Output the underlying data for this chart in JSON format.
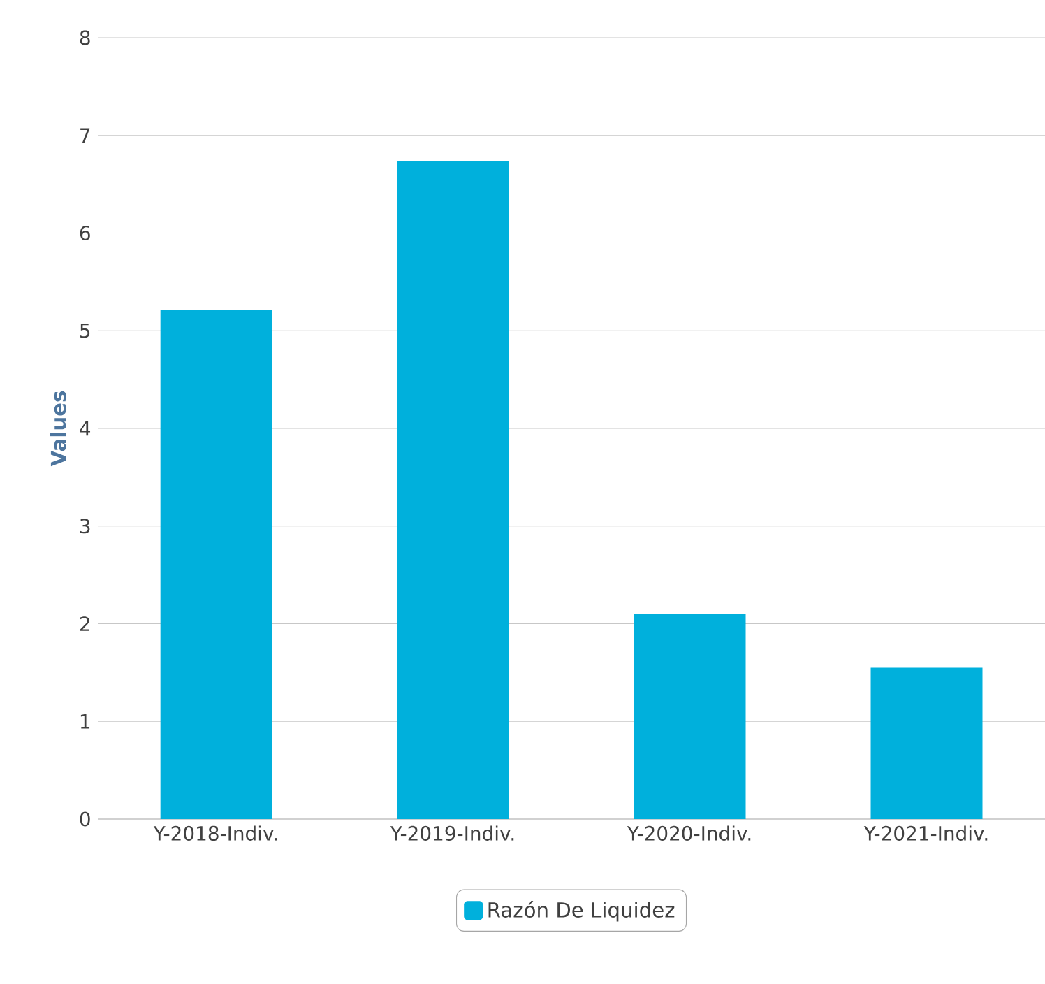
{
  "chart_data": {
    "type": "bar",
    "ylabel": "Values",
    "categories": [
      "Y-2018-Indiv.",
      "Y-2019-Indiv.",
      "Y-2020-Indiv.",
      "Y-2021-Indiv."
    ],
    "series": [
      {
        "name": "Razón De Liquidez",
        "color": "#00b0dc",
        "values": [
          5.21,
          6.74,
          2.1,
          1.55
        ]
      }
    ],
    "ylim": [
      0,
      8
    ],
    "yticks": [
      0,
      1,
      2,
      3,
      4,
      5,
      6,
      7,
      8
    ],
    "grid": "y",
    "legend": "bottom"
  }
}
